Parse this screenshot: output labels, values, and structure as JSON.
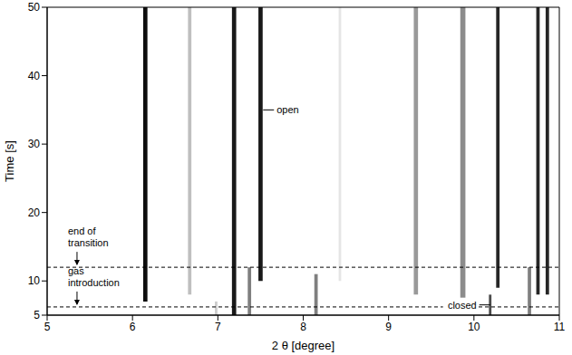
{
  "chart_data": {
    "type": "heatmap",
    "x_label": "2 θ [degree]",
    "y_label": "Time [s]",
    "xlim": [
      5,
      11
    ],
    "xticks": [
      5,
      6,
      7,
      8,
      9,
      10,
      11
    ],
    "ylim": [
      5,
      50
    ],
    "yticks": [
      5,
      10,
      20,
      30,
      40,
      50
    ],
    "grid": false,
    "color": "#000000",
    "peaks": [
      {
        "x": 6.15,
        "width": 0.05,
        "y_start": 7,
        "y_end": 50,
        "intensity": 0.95
      },
      {
        "x": 6.67,
        "width": 0.04,
        "y_start": 8,
        "y_end": 50,
        "intensity": 0.25
      },
      {
        "x": 6.98,
        "width": 0.03,
        "y_start": 5,
        "y_end": 7,
        "intensity": 0.2
      },
      {
        "x": 7.19,
        "width": 0.05,
        "y_start": 5,
        "y_end": 50,
        "intensity": 0.9
      },
      {
        "x": 7.37,
        "width": 0.04,
        "y_start": 5,
        "y_end": 12,
        "intensity": 0.5
      },
      {
        "x": 7.5,
        "width": 0.05,
        "y_start": 10,
        "y_end": 50,
        "intensity": 0.9
      },
      {
        "x": 8.15,
        "width": 0.04,
        "y_start": 5,
        "y_end": 11,
        "intensity": 0.5
      },
      {
        "x": 8.43,
        "width": 0.03,
        "y_start": 10,
        "y_end": 50,
        "intensity": 0.1
      },
      {
        "x": 9.32,
        "width": 0.05,
        "y_start": 8,
        "y_end": 50,
        "intensity": 0.4
      },
      {
        "x": 9.87,
        "width": 0.06,
        "y_start": 7,
        "y_end": 50,
        "intensity": 0.45
      },
      {
        "x": 10.19,
        "width": 0.03,
        "y_start": 5,
        "y_end": 8,
        "intensity": 0.7
      },
      {
        "x": 10.28,
        "width": 0.04,
        "y_start": 9,
        "y_end": 50,
        "intensity": 0.85
      },
      {
        "x": 10.65,
        "width": 0.04,
        "y_start": 5,
        "y_end": 12,
        "intensity": 0.5
      },
      {
        "x": 10.75,
        "width": 0.04,
        "y_start": 8,
        "y_end": 50,
        "intensity": 0.85
      },
      {
        "x": 10.86,
        "width": 0.04,
        "y_start": 8,
        "y_end": 50,
        "intensity": 0.85
      }
    ],
    "lines": [
      {
        "y": 6.2,
        "x": 5.35,
        "label": "gas introduction",
        "line_style": "dashed"
      },
      {
        "y": 12,
        "x": 5.35,
        "label": "end of transition",
        "line_style": "dashed"
      }
    ],
    "annotations": [
      {
        "text": "open",
        "x": 7.53,
        "y": 35
      },
      {
        "text": "closed",
        "x": 10.19,
        "y": 6.5
      }
    ]
  }
}
